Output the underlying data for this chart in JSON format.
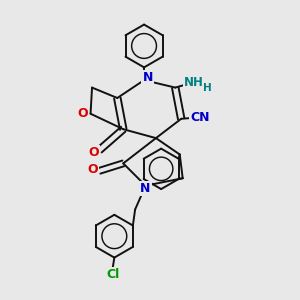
{
  "background_color": "#e8e8e8",
  "fig_size": [
    3.0,
    3.0
  ],
  "dpi": 100,
  "atom_colors": {
    "N": "#0000cc",
    "O": "#dd0000",
    "Cl": "#009900",
    "CN_label": "#0000cc",
    "NH2_label": "#008080"
  },
  "bond_color": "#111111",
  "bond_width": 1.4
}
